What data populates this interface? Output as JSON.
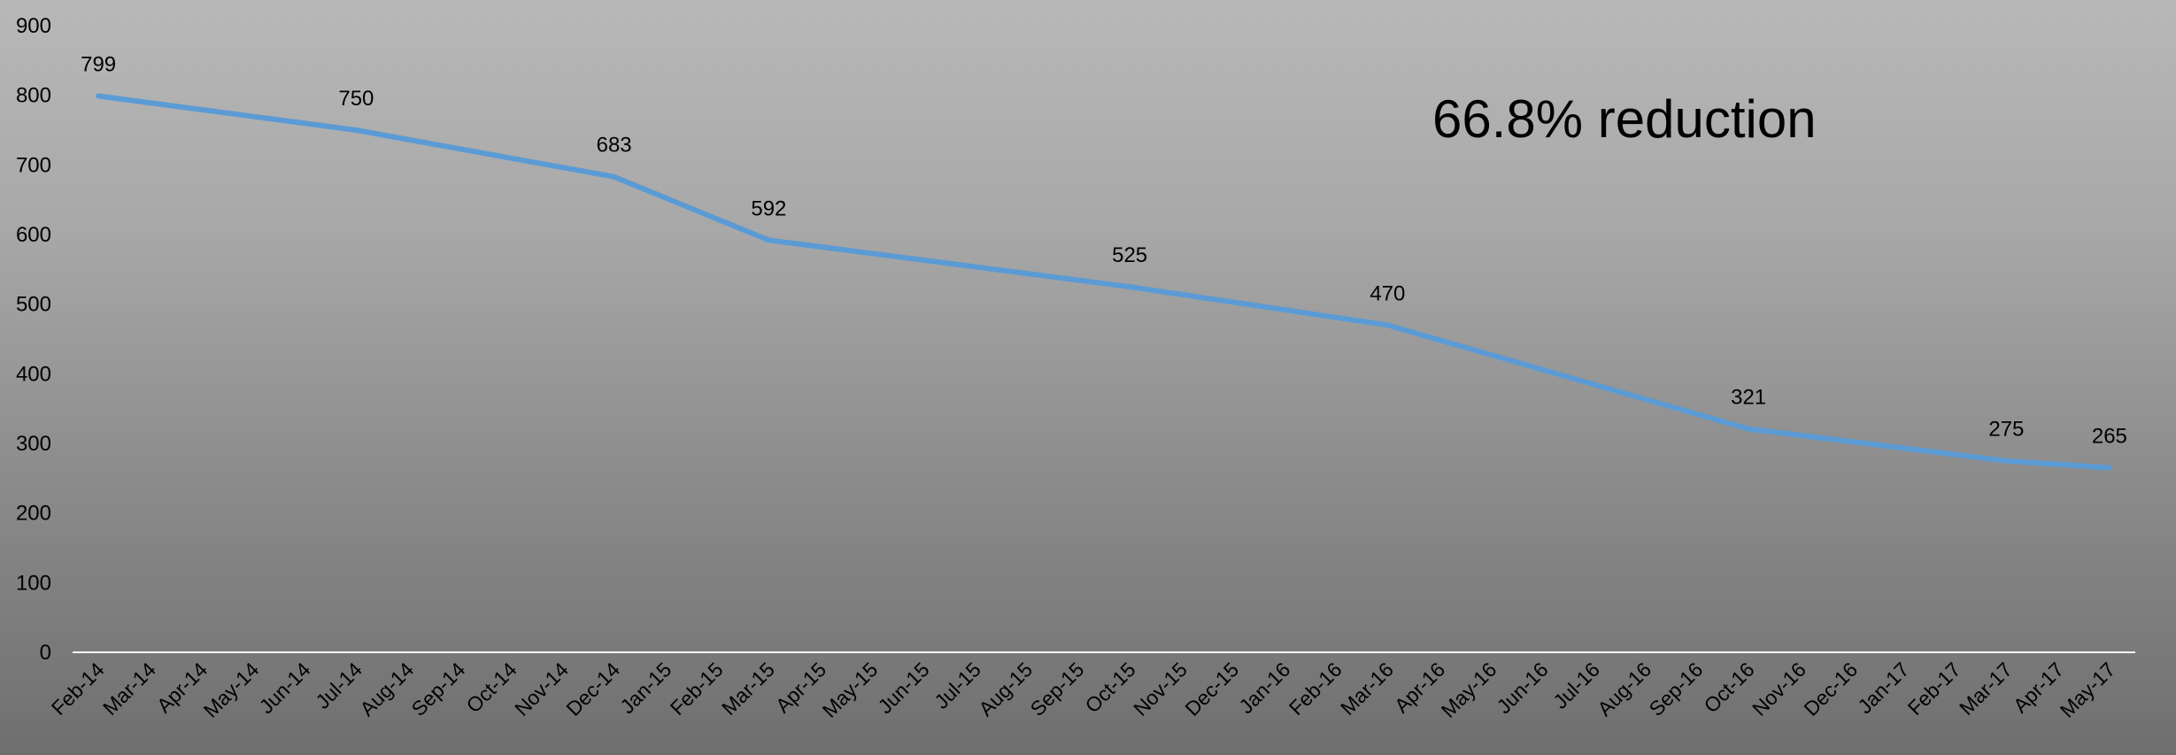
{
  "chart_data": {
    "type": "line",
    "categories": [
      "Feb-14",
      "Mar-14",
      "Apr-14",
      "May-14",
      "Jun-14",
      "Jul-14",
      "Aug-14",
      "Sep-14",
      "Oct-14",
      "Nov-14",
      "Dec-14",
      "Jan-15",
      "Feb-15",
      "Mar-15",
      "Apr-15",
      "May-15",
      "Jun-15",
      "Jul-15",
      "Aug-15",
      "Sep-15",
      "Oct-15",
      "Nov-15",
      "Dec-15",
      "Jan-16",
      "Feb-16",
      "Mar-16",
      "Apr-16",
      "May-16",
      "Jun-16",
      "Jul-16",
      "Aug-16",
      "Sep-16",
      "Oct-16",
      "Nov-16",
      "Dec-16",
      "Jan-17",
      "Feb-17",
      "Mar-17",
      "Apr-17",
      "May-17"
    ],
    "points": [
      {
        "x": "Feb-14",
        "y": 799
      },
      {
        "x": "Jul-14",
        "y": 750
      },
      {
        "x": "Dec-14",
        "y": 683
      },
      {
        "x": "Mar-15",
        "y": 592
      },
      {
        "x": "Oct-15",
        "y": 525
      },
      {
        "x": "Mar-16",
        "y": 470
      },
      {
        "x": "Oct-16",
        "y": 321
      },
      {
        "x": "Mar-17",
        "y": 275
      },
      {
        "x": "May-17",
        "y": 265
      }
    ],
    "data_labels": [
      "799",
      "750",
      "683",
      "592",
      "525",
      "470",
      "321",
      "275",
      "265"
    ],
    "y_ticks": [
      "0",
      "100",
      "200",
      "300",
      "400",
      "500",
      "600",
      "700",
      "800",
      "900"
    ],
    "ylim": [
      0,
      900
    ],
    "annotation": "66.8% reduction",
    "line_color": "#5b9bd5",
    "grid": false,
    "legend": "none"
  }
}
